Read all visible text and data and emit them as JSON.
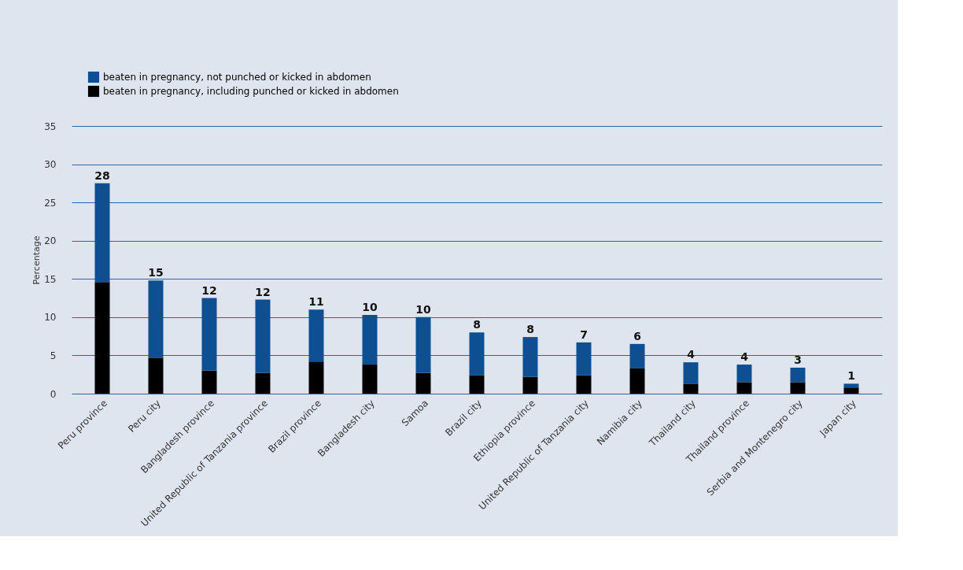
{
  "chart_data": {
    "type": "bar",
    "stacked": true,
    "ylabel": "Percentage",
    "categories": [
      "Peru province",
      "Peru city",
      "Bangladesh province",
      "United Republic of Tanzania province",
      "Brazil province",
      "Bangladesh city",
      "Samoa",
      "Brazil city",
      "Ethiopia province",
      "United Republic of Tanzania city",
      "Namibia city",
      "Thailand city",
      "Thailand province",
      "Serbia and Montenegro city",
      "Japan city"
    ],
    "series": [
      {
        "name": "beaten in pregnancy, including punched or kicked in abdomen",
        "color": "#000000",
        "values": [
          14.6,
          4.7,
          3.0,
          2.7,
          4.2,
          3.8,
          2.7,
          2.4,
          2.2,
          2.4,
          3.3,
          1.3,
          1.5,
          1.5,
          0.8
        ]
      },
      {
        "name": "beaten in pregnancy, not punched or kicked in abdomen",
        "color": "#0d4f91",
        "values": [
          12.9,
          10.1,
          9.5,
          9.6,
          6.8,
          6.5,
          7.3,
          5.6,
          5.2,
          4.3,
          3.2,
          2.8,
          2.3,
          1.9,
          0.5
        ]
      }
    ],
    "totals": [
      "28",
      "15",
      "12",
      "12",
      "11",
      "10",
      "10",
      "8",
      "8",
      "7",
      "6",
      "4",
      "4",
      "3",
      "1"
    ],
    "ylim": [
      0,
      35
    ],
    "yticks": [
      0,
      5,
      10,
      15,
      20,
      25,
      30,
      35
    ],
    "grid": "y",
    "legend": "top left"
  }
}
